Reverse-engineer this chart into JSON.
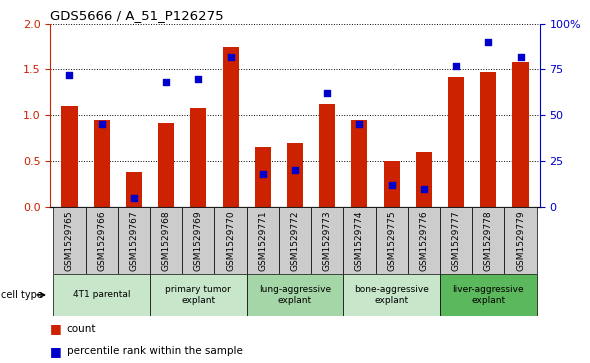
{
  "title": "GDS5666 / A_51_P126275",
  "samples": [
    "GSM1529765",
    "GSM1529766",
    "GSM1529767",
    "GSM1529768",
    "GSM1529769",
    "GSM1529770",
    "GSM1529771",
    "GSM1529772",
    "GSM1529773",
    "GSM1529774",
    "GSM1529775",
    "GSM1529776",
    "GSM1529777",
    "GSM1529778",
    "GSM1529779"
  ],
  "red_values": [
    1.1,
    0.95,
    0.38,
    0.92,
    1.08,
    1.75,
    0.65,
    0.7,
    1.12,
    0.95,
    0.5,
    0.6,
    1.42,
    1.47,
    1.58
  ],
  "blue_values": [
    72,
    45,
    5,
    68,
    70,
    82,
    18,
    20,
    62,
    45,
    12,
    10,
    77,
    90,
    82
  ],
  "ylim_left": [
    0,
    2
  ],
  "ylim_right": [
    0,
    100
  ],
  "yticks_left": [
    0,
    0.5,
    1.0,
    1.5,
    2.0
  ],
  "yticks_right": [
    0,
    25,
    50,
    75,
    100
  ],
  "ytick_labels_right": [
    "0",
    "25",
    "50",
    "75",
    "100%"
  ],
  "cell_type_groups": [
    {
      "label": "4T1 parental",
      "start": 0,
      "end": 2,
      "color": "#c8e6c9"
    },
    {
      "label": "primary tumor\nexplant",
      "start": 3,
      "end": 5,
      "color": "#c8e6c9"
    },
    {
      "label": "lung-aggressive\nexplant",
      "start": 6,
      "end": 8,
      "color": "#a5d6a7"
    },
    {
      "label": "bone-aggressive\nexplant",
      "start": 9,
      "end": 11,
      "color": "#c8e6c9"
    },
    {
      "label": "liver-aggressive\nexplant",
      "start": 12,
      "end": 14,
      "color": "#5cb85c"
    }
  ],
  "red_color": "#cc2200",
  "blue_color": "#0000cc",
  "bar_width": 0.5,
  "bg_color": "#ffffff",
  "grey_box_color": "#cccccc",
  "legend_items": [
    {
      "color": "#cc2200",
      "label": "count"
    },
    {
      "color": "#0000cc",
      "label": "percentile rank within the sample"
    }
  ]
}
